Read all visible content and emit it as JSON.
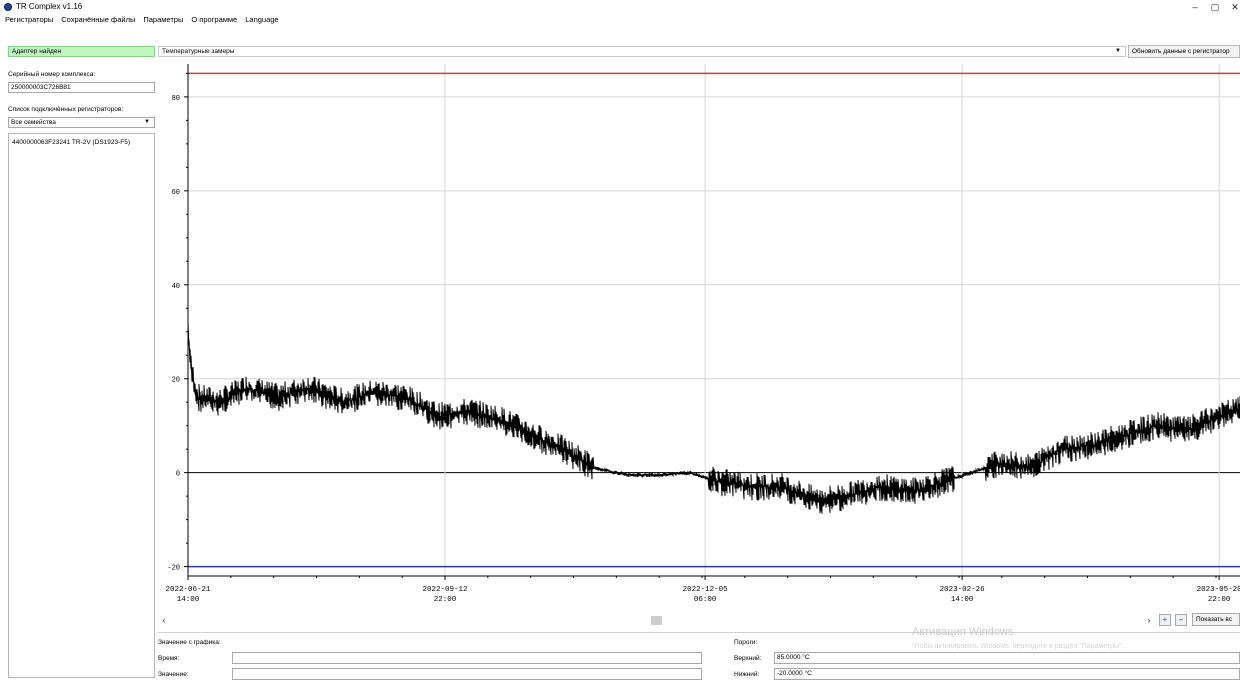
{
  "window": {
    "title": "TR Complex v1.16",
    "minimize": "–",
    "maximize": "▢",
    "close": "✕"
  },
  "menu": [
    "Регистраторы",
    "Сохранённые файлы",
    "Параметры",
    "О программе",
    "Language"
  ],
  "toolbar": {
    "adapter_status": "Адаптер найден",
    "data_type": "Температурные замеры",
    "refresh_button": "Обновить данные с регистратор"
  },
  "sidebar": {
    "serial_label": "Серийный номер комплекса:",
    "serial_value": "250000003C726B81",
    "list_label": "Список подключённых регистраторов:",
    "family_selected": "Все семейства",
    "registrators": [
      "4400000063F23241 TR-2V (DS1923-F5)"
    ]
  },
  "chart_data": {
    "type": "line",
    "title": "",
    "xlabel": "",
    "ylabel": "",
    "x_ticks": [
      {
        "date": "2022-06-21",
        "time": "14:00"
      },
      {
        "date": "2022-09-12",
        "time": "22:00"
      },
      {
        "date": "2022-12-05",
        "time": "06:00"
      },
      {
        "date": "2023-02-26",
        "time": "14:00"
      },
      {
        "date": "2023-05-20",
        "time": "22:00"
      }
    ],
    "y_ticks": [
      -20,
      0,
      20,
      40,
      60,
      80
    ],
    "ylim": [
      -22,
      87
    ],
    "grid": true,
    "thresholds": {
      "upper": 85,
      "lower": -20
    },
    "series": [
      {
        "color": "#000000",
        "x": [
          "2022-06-21",
          "2022-06-22",
          "2022-06-24",
          "2022-07-01",
          "2022-07-10",
          "2022-07-20",
          "2022-07-30",
          "2022-08-10",
          "2022-08-20",
          "2022-08-30",
          "2022-09-10",
          "2022-09-20",
          "2022-10-01",
          "2022-10-10",
          "2022-10-20",
          "2022-10-30",
          "2022-11-10",
          "2022-11-20",
          "2022-11-30",
          "2022-12-10",
          "2022-12-20",
          "2022-12-30",
          "2023-01-10",
          "2023-01-20",
          "2023-01-30",
          "2023-02-10",
          "2023-02-20",
          "2023-03-01",
          "2023-03-10",
          "2023-03-20",
          "2023-03-30",
          "2023-04-10",
          "2023-04-20",
          "2023-04-30",
          "2023-05-10",
          "2023-05-20",
          "2023-05-30"
        ],
        "y": [
          30,
          22,
          16,
          15,
          18,
          16,
          18,
          15,
          17,
          16,
          12,
          13,
          11,
          8,
          5,
          1,
          -0.5,
          -0.5,
          0,
          -2,
          -3,
          -3,
          -6,
          -5,
          -3,
          -4,
          -2,
          0,
          2,
          1,
          5,
          6,
          8,
          10,
          9,
          12,
          14
        ]
      }
    ]
  },
  "controls": {
    "scroll_left": "‹",
    "scroll_right": "›",
    "zoom_in": "+",
    "zoom_out": "−",
    "show_all": "Показать вс"
  },
  "info": {
    "from_chart_label": "Значение с графика:",
    "time_label": "Время:",
    "time_value": "",
    "value_label": "Значение:",
    "value_value": "",
    "thresholds_label": "Пороги:",
    "upper_label": "Верхний:",
    "upper_value": "85.0000 °C",
    "lower_label": "Нижний:",
    "lower_value": "-20.0000 °C"
  },
  "watermark": {
    "title": "Активация Windows",
    "subtitle": "Чтобы активировать Windows, перейдите в раздел \"Параметры\"."
  }
}
